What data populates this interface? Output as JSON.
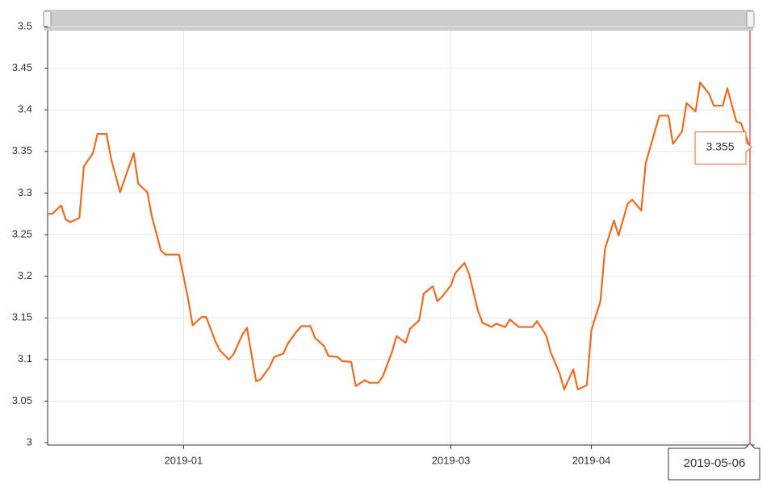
{
  "chart_data": {
    "type": "line",
    "x": [
      "2018-12-02",
      "2018-12-03",
      "2018-12-05",
      "2018-12-06",
      "2018-12-07",
      "2018-12-09",
      "2018-12-10",
      "2018-12-12",
      "2018-12-13",
      "2018-12-15",
      "2018-12-16",
      "2018-12-18",
      "2018-12-19",
      "2018-12-21",
      "2018-12-22",
      "2018-12-24",
      "2018-12-25",
      "2018-12-27",
      "2018-12-28",
      "2018-12-30",
      "2018-12-31",
      "2019-01-02",
      "2019-01-03",
      "2019-01-05",
      "2019-01-06",
      "2019-01-08",
      "2019-01-09",
      "2019-01-11",
      "2019-01-12",
      "2019-01-14",
      "2019-01-15",
      "2019-01-17",
      "2019-01-18",
      "2019-01-20",
      "2019-01-21",
      "2019-01-23",
      "2019-01-24",
      "2019-01-26",
      "2019-01-27",
      "2019-01-29",
      "2019-01-30",
      "2019-02-01",
      "2019-02-02",
      "2019-02-04",
      "2019-02-05",
      "2019-02-07",
      "2019-02-08",
      "2019-02-10",
      "2019-02-11",
      "2019-02-13",
      "2019-02-14",
      "2019-02-16",
      "2019-02-17",
      "2019-02-19",
      "2019-02-20",
      "2019-02-22",
      "2019-02-23",
      "2019-02-25",
      "2019-02-26",
      "2019-02-27",
      "2019-03-01",
      "2019-03-02",
      "2019-03-04",
      "2019-03-05",
      "2019-03-07",
      "2019-03-08",
      "2019-03-10",
      "2019-03-11",
      "2019-03-13",
      "2019-03-14",
      "2019-03-16",
      "2019-03-17",
      "2019-03-19",
      "2019-03-20",
      "2019-03-22",
      "2019-03-23",
      "2019-03-25",
      "2019-03-26",
      "2019-03-28",
      "2019-03-29",
      "2019-03-31",
      "2019-04-01",
      "2019-04-03",
      "2019-04-04",
      "2019-04-06",
      "2019-04-07",
      "2019-04-09",
      "2019-04-10",
      "2019-04-12",
      "2019-04-13",
      "2019-04-15",
      "2019-04-16",
      "2019-04-18",
      "2019-04-19",
      "2019-04-21",
      "2019-04-22",
      "2019-04-24",
      "2019-04-25",
      "2019-04-27",
      "2019-04-28",
      "2019-04-30",
      "2019-05-01",
      "2019-05-03",
      "2019-05-04",
      "2019-05-06"
    ],
    "values": [
      3.275,
      3.275,
      3.285,
      3.268,
      3.265,
      3.27,
      3.332,
      3.348,
      3.371,
      3.371,
      3.341,
      3.301,
      3.317,
      3.348,
      3.311,
      3.301,
      3.272,
      3.231,
      3.226,
      3.226,
      3.226,
      3.173,
      3.141,
      3.151,
      3.151,
      3.122,
      3.111,
      3.1,
      3.106,
      3.13,
      3.138,
      3.074,
      3.076,
      3.091,
      3.103,
      3.107,
      3.119,
      3.134,
      3.14,
      3.14,
      3.126,
      3.116,
      3.104,
      3.103,
      3.098,
      3.097,
      3.068,
      3.075,
      3.072,
      3.072,
      3.08,
      3.109,
      3.128,
      3.12,
      3.137,
      3.147,
      3.179,
      3.188,
      3.17,
      3.175,
      3.189,
      3.204,
      3.216,
      3.203,
      3.158,
      3.144,
      3.139,
      3.143,
      3.139,
      3.148,
      3.139,
      3.139,
      3.139,
      3.146,
      3.129,
      3.109,
      3.083,
      3.064,
      3.088,
      3.064,
      3.069,
      3.135,
      3.17,
      3.233,
      3.267,
      3.249,
      3.287,
      3.292,
      3.279,
      3.336,
      3.374,
      3.393,
      3.393,
      3.359,
      3.374,
      3.408,
      3.398,
      3.433,
      3.419,
      3.405,
      3.405,
      3.426,
      3.386,
      3.384,
      3.355
    ],
    "color": "#ee6b1e",
    "xlim": [
      "2018-12-02",
      "2019-05-06"
    ],
    "xticks": [
      {
        "value": "2019-01-01",
        "label": "2019-01"
      },
      {
        "value": "2019-03-01",
        "label": "2019-03"
      },
      {
        "value": "2019-04-01",
        "label": "2019-04"
      }
    ],
    "ylim": [
      3,
      3.5
    ],
    "yticks": [
      3,
      3.05,
      3.1,
      3.15,
      3.2,
      3.25,
      3.3,
      3.35,
      3.4,
      3.45,
      3.5
    ],
    "grid": true
  }
}
